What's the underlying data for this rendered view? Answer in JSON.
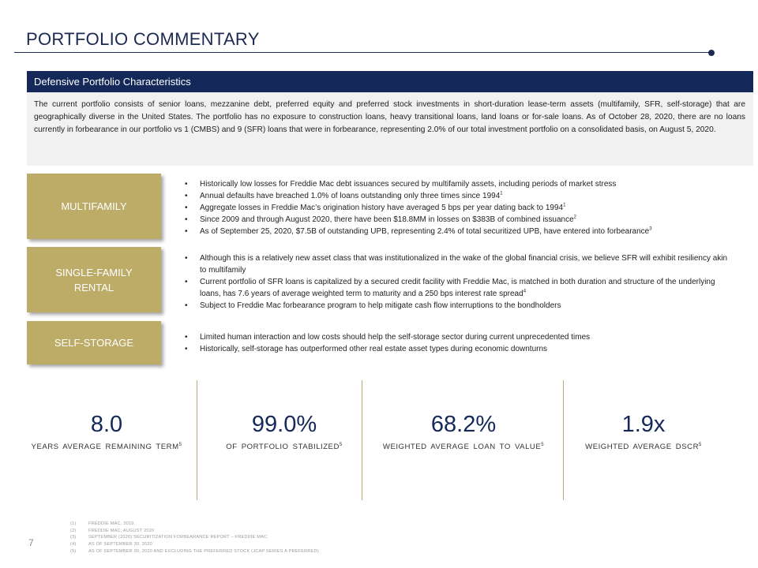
{
  "page": {
    "title": "PORTFOLIO COMMENTARY",
    "number": "7"
  },
  "section": {
    "header": "Defensive Portfolio Characteristics",
    "body": "The current portfolio consists of senior loans, mezzanine debt, preferred equity and preferred stock investments in short-duration lease-term assets (multifamily, SFR, self-storage) that are geographically diverse in the United States. The portfolio has no exposure to construction loans, heavy transitional loans, land loans or for-sale loans. As of October 28, 2020, there are no loans currently in forbearance in our portfolio vs 1 (CMBS) and 9 (SFR) loans that were in forbearance, representing 2.0% of our total investment portfolio on a consolidated basis, on August 5, 2020."
  },
  "categories": {
    "multifamily": {
      "label": "MULTIFAMILY",
      "bullets": [
        {
          "text": "Historically low losses for Freddie Mac debt issuances secured by multifamily assets, including periods of market stress",
          "note": ""
        },
        {
          "text": "Annual defaults have breached 1.0% of loans outstanding only three times since 1994",
          "note": "1"
        },
        {
          "text": "Aggregate losses in Freddie Mac’s origination history have averaged 5 bps per year dating back to 1994",
          "note": "1"
        },
        {
          "text": "Since 2009 and through August 2020, there have been $18.8MM in losses on $383B of combined issuance",
          "note": "2"
        },
        {
          "text": "As of September 25, 2020, $7.5B of outstanding UPB, representing 2.4% of total securitized UPB, have entered into forbearance",
          "note": "3"
        }
      ]
    },
    "sfr": {
      "label_line1": "SINGLE-FAMILY",
      "label_line2": "RENTAL",
      "bullets": [
        {
          "text": "Although this is a relatively new asset class that was institutionalized in the wake of the global financial crisis, we believe SFR will exhibit resiliency akin to multifamily",
          "note": ""
        },
        {
          "text": "Current portfolio of SFR loans is capitalized by a secured credit facility with Freddie Mac, is matched in both duration and structure of the underlying loans, has 7.6 years of average weighted term to maturity and a 250 bps interest rate spread",
          "note": "4"
        },
        {
          "text": "Subject to Freddie Mac forbearance program to help mitigate cash flow interruptions to the bondholders",
          "note": ""
        }
      ]
    },
    "self_storage": {
      "label": "SELF-STORAGE",
      "bullets": [
        {
          "text": "Limited human interaction and low costs should help the self-storage sector during current unprecedented times",
          "note": ""
        },
        {
          "text": "Historically, self-storage has outperformed other real estate asset types during economic downturns",
          "note": ""
        }
      ]
    }
  },
  "stats": [
    {
      "value": "8.0",
      "label": "YEARS AVERAGE REMAINING TERM",
      "note": "5"
    },
    {
      "value": "99.0%",
      "label": "OF PORTFOLIO STABILIZED",
      "note": "5"
    },
    {
      "value": "68.2%",
      "label": "WEIGHTED AVERAGE LOAN TO VALUE",
      "note": "5"
    },
    {
      "value": "1.9x",
      "label": "WEIGHTED AVERAGE DSCR",
      "note": "5"
    }
  ],
  "footnotes": [
    {
      "num": "(1)",
      "text": "FREDDIE MAC; 2019"
    },
    {
      "num": "(2)",
      "text": "FREDDIE MAC; AUGUST 2020"
    },
    {
      "num": "(3)",
      "text": "SEPTEMBER (2020) SECURITIZATION FORBEARANCE REPORT – FREDDIE MAC"
    },
    {
      "num": "(4)",
      "text": "AS OF SEPTEMBER 30, 2020"
    },
    {
      "num": "(5)",
      "text": "AS OF SEPTEMBER 30, 2020 AND EXCLUDING THE PREFERRED STOCK (JCAP SERIES A PREFERRED)"
    }
  ],
  "colors": {
    "navy": "#14285a",
    "gold": "#bdab68",
    "panel": "#f1f1f1"
  }
}
